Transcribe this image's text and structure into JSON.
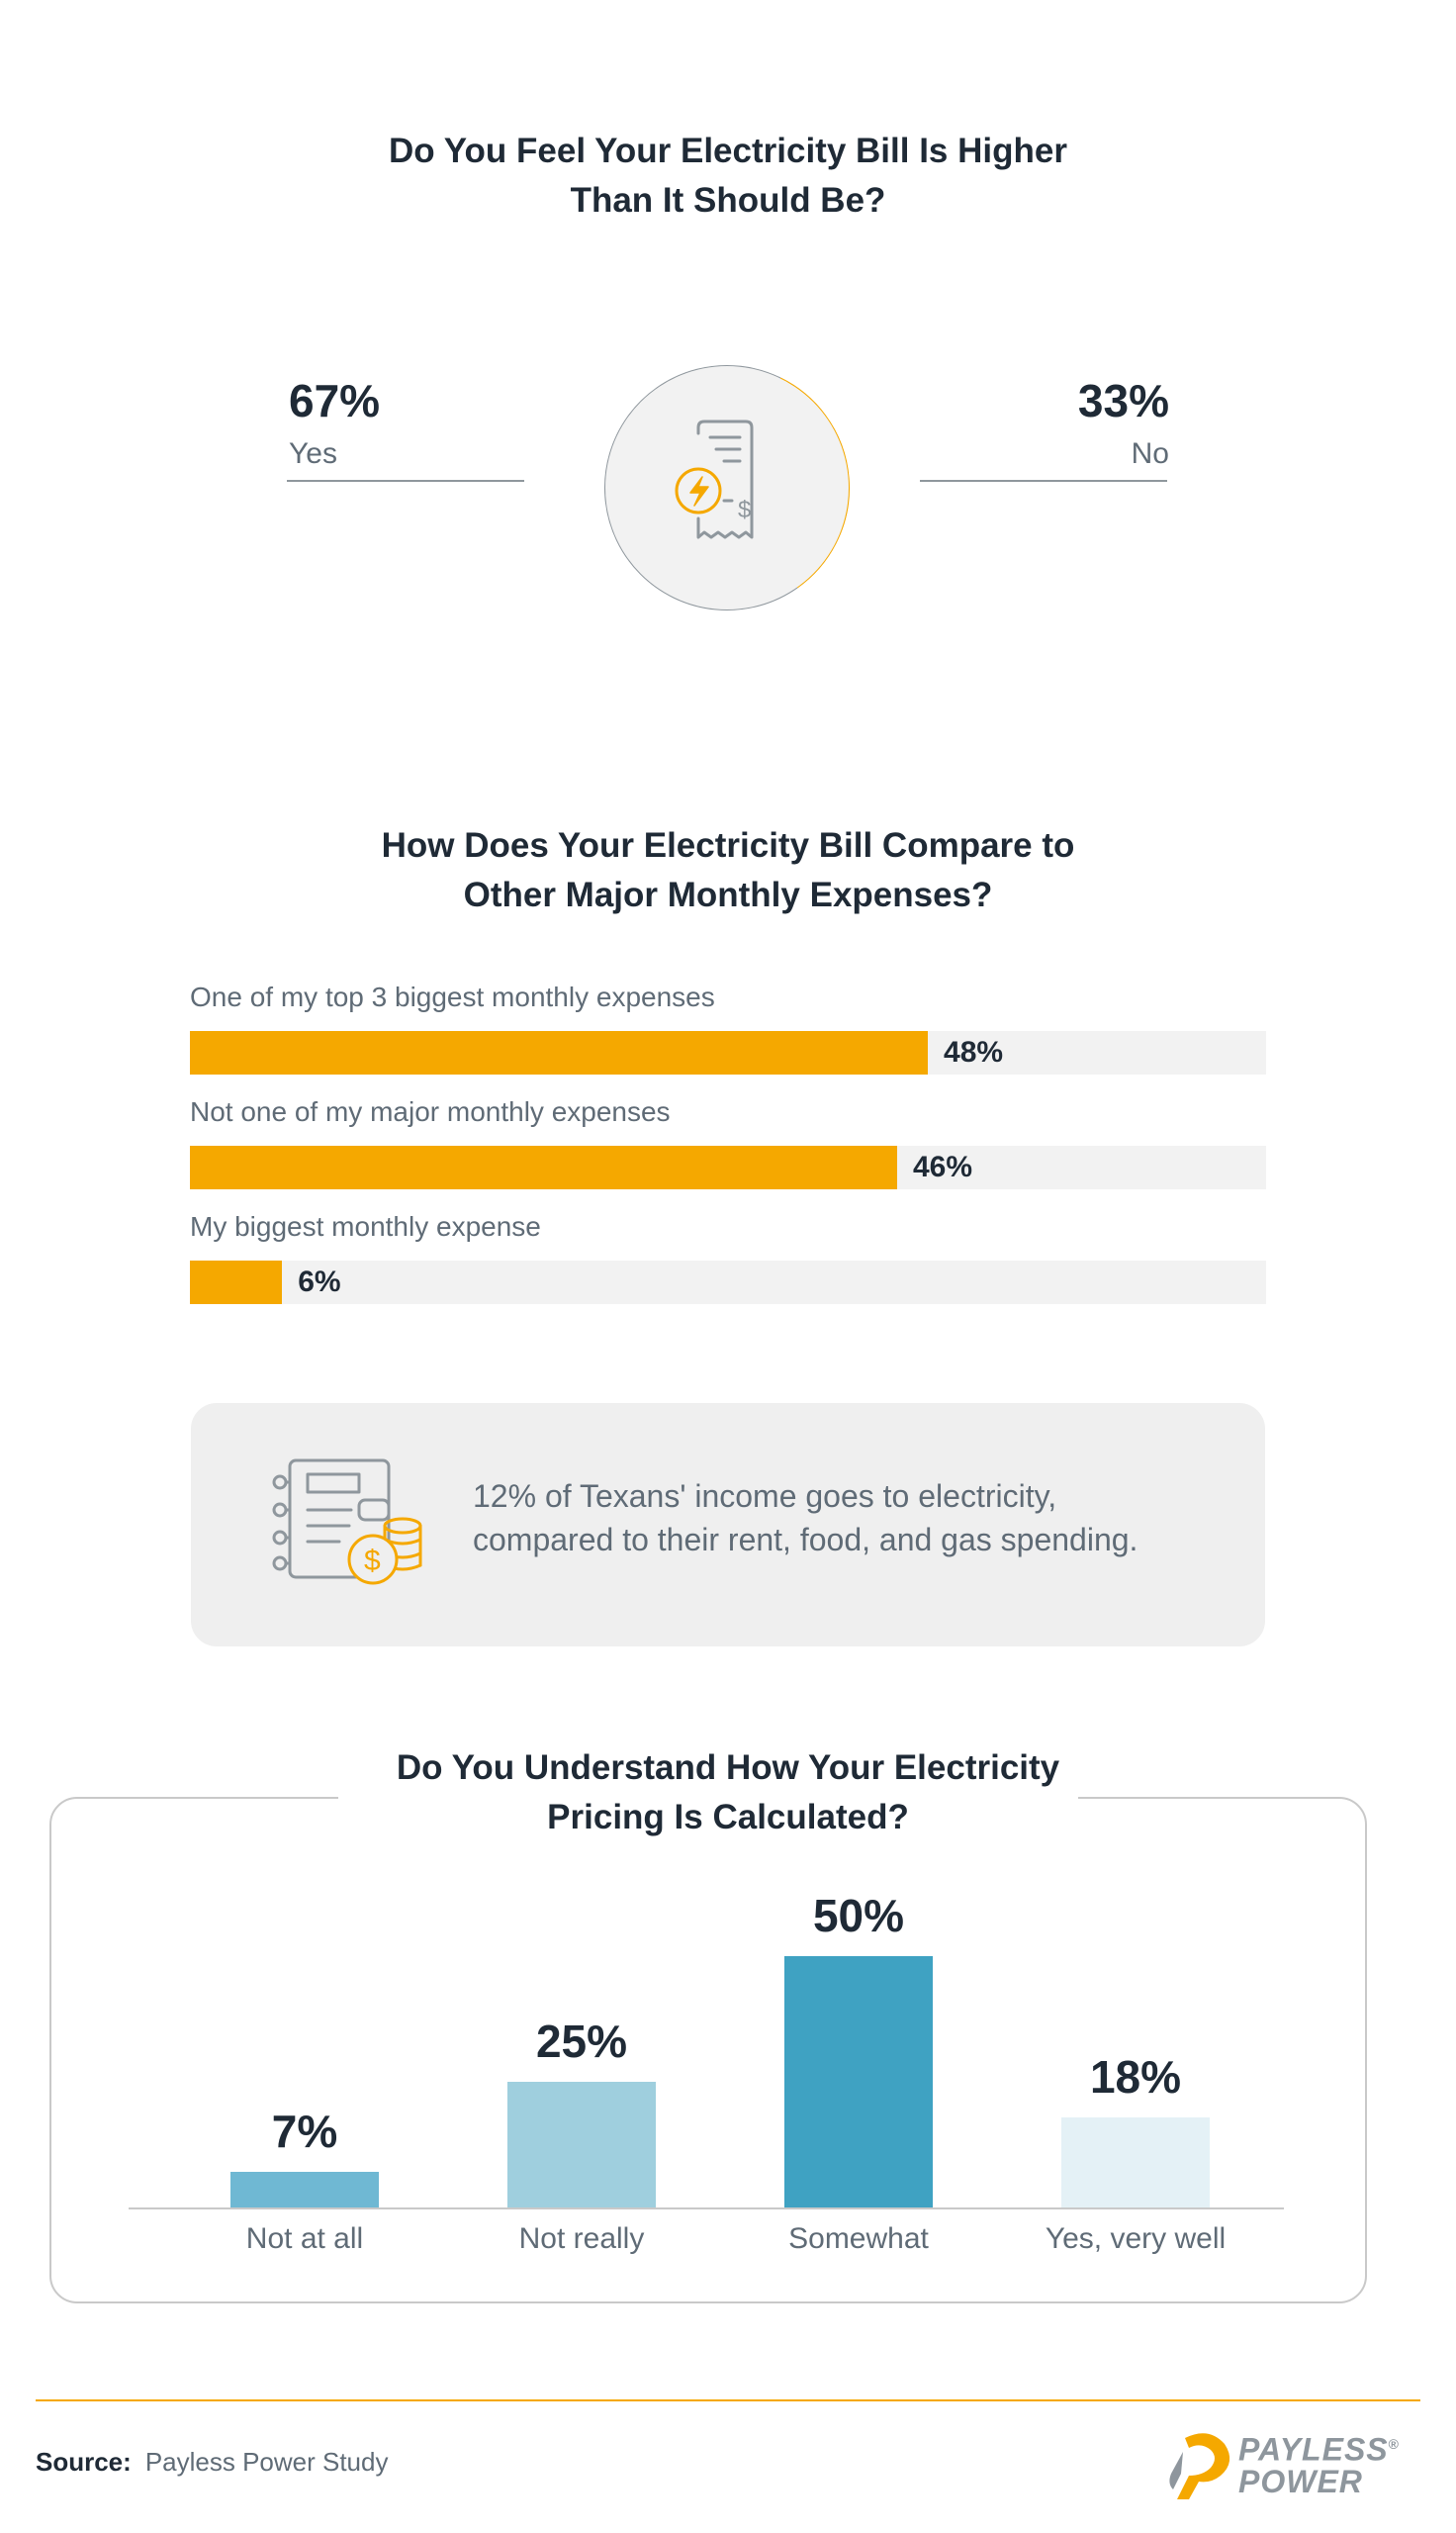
{
  "chart_data": [
    {
      "type": "pie",
      "title": "Do You Feel Your Electricity Bill Is Higher Than It Should Be?",
      "title_lines": [
        "Do You Feel Your Electricity Bill Is Higher",
        "Than It Should Be?"
      ],
      "categories": [
        "Yes",
        "No"
      ],
      "values": [
        67,
        33
      ],
      "value_labels": [
        "67%",
        "33%"
      ],
      "colors": [
        "#8f979d",
        "#f5a800"
      ],
      "center_icon": "electricity-bill-icon"
    },
    {
      "type": "bar",
      "orientation": "horizontal",
      "title": "How Does Your Electricity Bill Compare to Other Major Monthly Expenses?",
      "title_lines": [
        "How Does Your Electricity Bill Compare to",
        "Other Major Monthly Expenses?"
      ],
      "categories": [
        "One of my top 3 biggest monthly expenses",
        "Not one of my major monthly expenses",
        "My biggest monthly expense"
      ],
      "values": [
        48,
        46,
        6
      ],
      "value_labels": [
        "48%",
        "46%",
        "6%"
      ],
      "xlim": [
        0,
        70
      ],
      "bar_color": "#f5a800",
      "track_color": "#f2f2f2"
    },
    {
      "type": "bar",
      "title": "Do You Understand How Your Electricity Pricing Is Calculated?",
      "title_lines": [
        "Do You Understand How Your Electricity",
        "Pricing Is Calculated?"
      ],
      "categories": [
        "Not at all",
        "Not really",
        "Somewhat",
        "Yes, very well"
      ],
      "values": [
        7,
        25,
        50,
        18
      ],
      "value_labels": [
        "7%",
        "25%",
        "50%",
        "18%"
      ],
      "ylim": [
        0,
        50
      ],
      "colors": [
        "#6fb8d3",
        "#9fcfde",
        "#3fa2c2",
        "#e4f1f6"
      ]
    }
  ],
  "callout": {
    "icon": "budget-coins-icon",
    "lines": [
      "12% of Texans' income goes to electricity,",
      "compared to their rent, food, and gas spending."
    ]
  },
  "footer": {
    "source_label": "Source:",
    "source_text": "Payless Power Study",
    "logo_lines": [
      "PAYLESS",
      "POWER"
    ],
    "logo_mark": "®"
  },
  "colors": {
    "accent": "#f5a800",
    "gray": "#8f979d",
    "text_dark": "#1f2a36",
    "text_muted": "#5f6b76"
  }
}
